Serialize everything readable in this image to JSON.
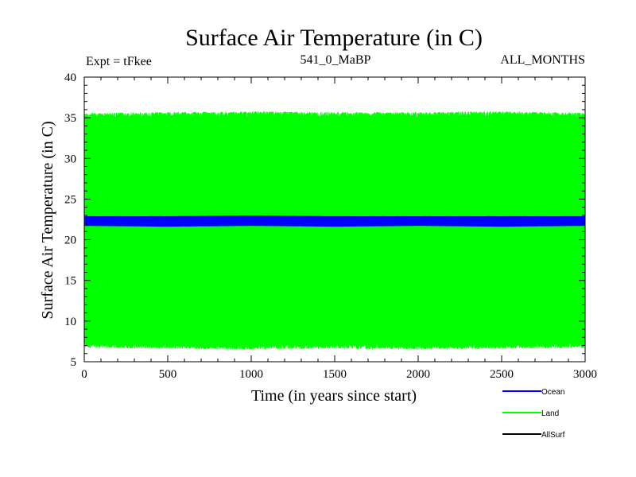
{
  "chart_data": {
    "type": "line",
    "title": "Surface Air Temperature (in C)",
    "subtitle_left": "Expt = tFkee",
    "subtitle_center": "541_0_MaBP",
    "subtitle_right": "ALL_MONTHS",
    "xlabel": "Time (in years since start)",
    "ylabel": "Surface Air Temperature (in C)",
    "xlim": [
      0,
      3000
    ],
    "ylim": [
      5,
      40
    ],
    "xticks": [
      0,
      500,
      1000,
      1500,
      2000,
      2500,
      3000
    ],
    "yticks": [
      5,
      10,
      15,
      20,
      25,
      30,
      35,
      40
    ],
    "grid": false,
    "legend_position": "bottom-right",
    "series": [
      {
        "name": "Ocean",
        "color": "#0000ff",
        "x": [
          0,
          500,
          1000,
          1500,
          2000,
          2500,
          3000
        ],
        "y_min": [
          21.7,
          21.6,
          21.7,
          21.6,
          21.7,
          21.6,
          21.7
        ],
        "y_max": [
          22.9,
          22.9,
          23.0,
          22.9,
          22.9,
          22.9,
          22.9
        ]
      },
      {
        "name": "Land",
        "color": "#00ff00",
        "x": [
          0,
          500,
          1000,
          1500,
          2000,
          2500,
          3000
        ],
        "y_min": [
          6.7,
          6.6,
          6.5,
          6.6,
          6.5,
          6.6,
          6.7
        ],
        "y_max": [
          35.6,
          35.7,
          35.8,
          35.7,
          35.7,
          35.8,
          35.6
        ]
      },
      {
        "name": "AllSurf",
        "color": "#000000",
        "x": [],
        "y": []
      }
    ]
  }
}
